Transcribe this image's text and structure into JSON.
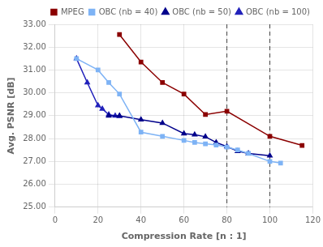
{
  "chart_data": {
    "type": "line",
    "xlabel": "Compression Rate [n : 1]",
    "ylabel": "Avg. PSNR [dB]",
    "xlim": [
      0,
      120
    ],
    "ylim": [
      25.0,
      33.0
    ],
    "xticks": [
      0,
      20,
      40,
      60,
      80,
      100,
      120
    ],
    "yticks": [
      {
        "value": 25.0,
        "label": "25.00"
      },
      {
        "value": 26.0,
        "label": "26.00"
      },
      {
        "value": 27.0,
        "label": "27.00"
      },
      {
        "value": 28.0,
        "label": "28.00"
      },
      {
        "value": 29.0,
        "label": "29.00"
      },
      {
        "value": 30.0,
        "label": "30.00"
      },
      {
        "value": 31.0,
        "label": "31.00"
      },
      {
        "value": 32.0,
        "label": "32.00"
      },
      {
        "value": 33.0,
        "label": "33.00"
      }
    ],
    "grid": true,
    "legend": "upper right",
    "vlines": [
      80,
      100
    ],
    "series": [
      {
        "name": "MPEG",
        "color": "#8B0000",
        "marker": "square",
        "line_style": "solid",
        "x": [
          30,
          40,
          50,
          60,
          70,
          80,
          100,
          115
        ],
        "values": [
          32.55,
          31.35,
          30.45,
          29.95,
          29.05,
          29.2,
          28.1,
          27.7
        ]
      },
      {
        "name": "OBC (nb = 40)",
        "color": "#7EB3F5",
        "marker": "square",
        "line_style": "solid",
        "x": [
          10,
          20,
          25,
          30,
          40,
          50,
          60,
          65,
          70,
          75,
          80,
          85,
          90,
          100,
          105
        ],
        "values": [
          31.5,
          31.0,
          30.45,
          29.95,
          28.28,
          28.1,
          27.92,
          27.83,
          27.77,
          27.72,
          27.63,
          27.5,
          27.35,
          27.0,
          26.93
        ]
      },
      {
        "name": "OBC (nb = 50)",
        "color": "#00008B",
        "marker": "triangle",
        "line_style": "solid",
        "x": [
          25,
          30,
          40,
          50,
          60,
          65,
          70,
          75,
          80,
          85,
          90,
          100
        ],
        "values": [
          29.0,
          29.0,
          28.83,
          28.68,
          28.22,
          28.17,
          28.08,
          27.83,
          27.65,
          27.45,
          27.35,
          27.25
        ]
      },
      {
        "name": "OBC (nb = 100)",
        "color": "#2222BB",
        "marker": "triangle",
        "line_style": "solid",
        "x": [
          10,
          15,
          20,
          22,
          25,
          28,
          30
        ],
        "values": [
          31.5,
          30.45,
          29.45,
          29.3,
          29.05,
          29.0,
          28.98
        ]
      }
    ]
  }
}
